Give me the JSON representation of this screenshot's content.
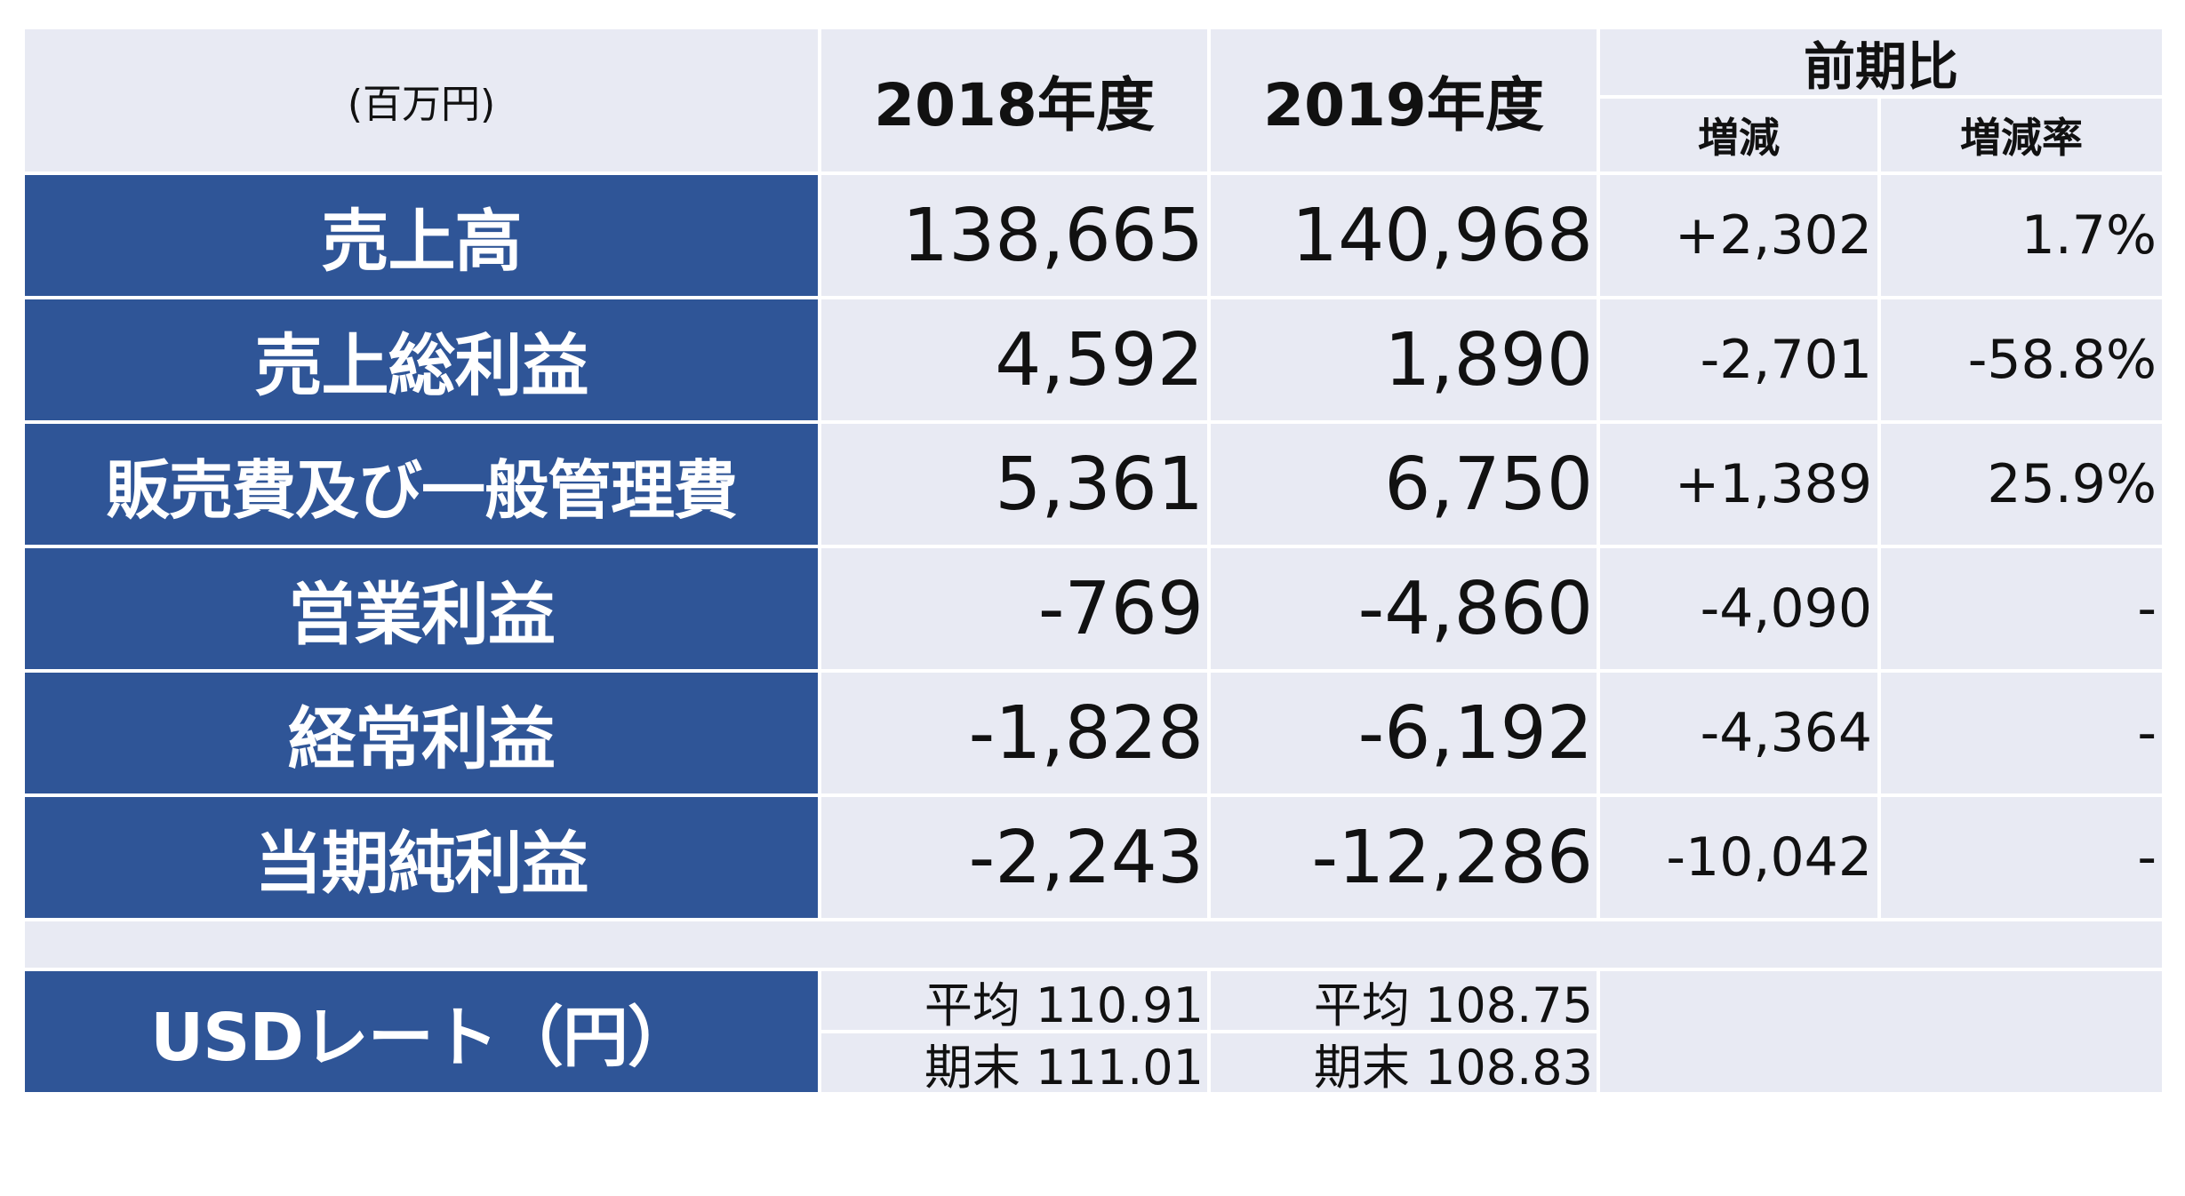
{
  "header": {
    "unit": "(百万円)",
    "col_2018": "2018年度",
    "col_2019": "2019年度",
    "group": "前期比",
    "sub_diff": "増減",
    "sub_rate": "増減率"
  },
  "rows": [
    {
      "label": "売上高",
      "v2018": "138,665",
      "v2019": "140,968",
      "diff": "+2,302",
      "rate": "1.7%"
    },
    {
      "label": "売上総利益",
      "v2018": "4,592",
      "v2019": "1,890",
      "diff": "-2,701",
      "rate": "-58.8%"
    },
    {
      "label": "販売費及び一般管理費",
      "v2018": "5,361",
      "v2019": "6,750",
      "diff": "+1,389",
      "rate": "25.9%"
    },
    {
      "label": "営業利益",
      "v2018": "-769",
      "v2019": "-4,860",
      "diff": "-4,090",
      "rate": "-"
    },
    {
      "label": "経常利益",
      "v2018": "-1,828",
      "v2019": "-6,192",
      "diff": "-4,364",
      "rate": "-"
    },
    {
      "label": "当期純利益",
      "v2018": "-2,243",
      "v2019": "-12,286",
      "diff": "-10,042",
      "rate": "-"
    }
  ],
  "usd": {
    "label": "USDレート（円）",
    "avg_2018": "平均 110.91",
    "end_2018": "期末 111.01",
    "avg_2019": "平均 108.75",
    "end_2019": "期末 108.83"
  },
  "colors": {
    "label_bg": "#2f5597",
    "cell_bg": "#e8eaf3"
  }
}
